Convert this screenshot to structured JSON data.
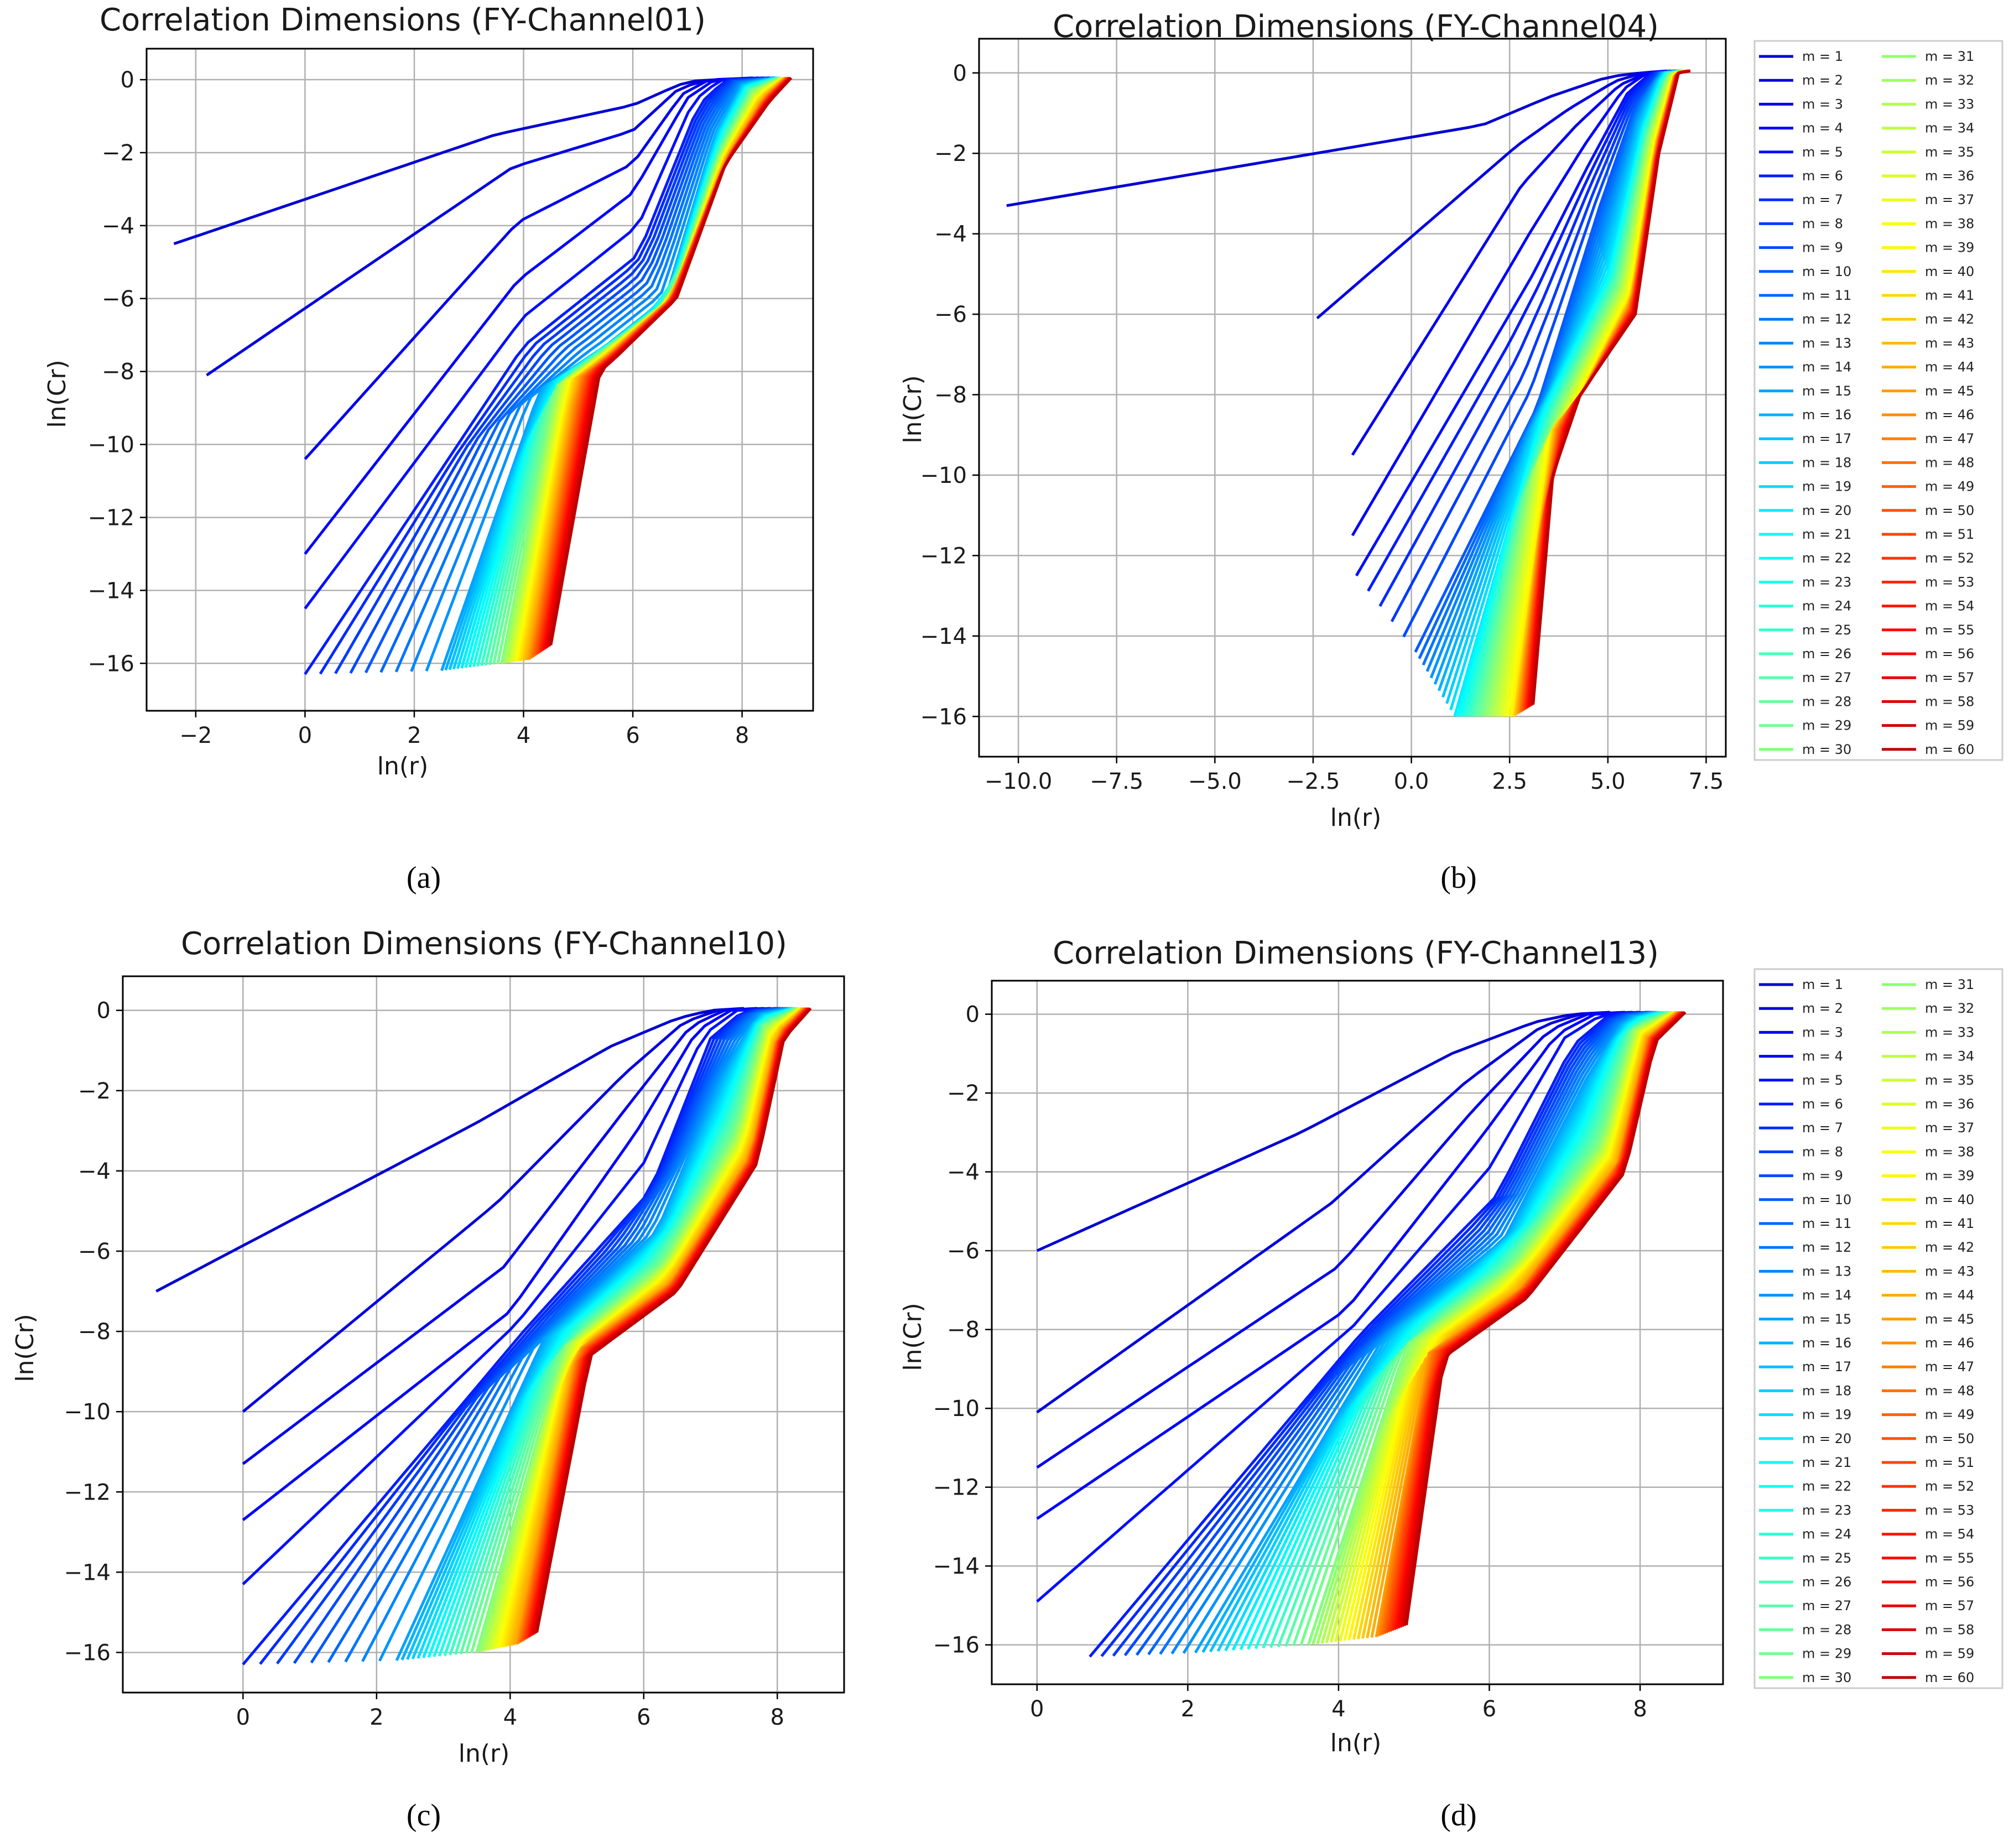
{
  "figure": {
    "background": "#ffffff"
  },
  "legend": {
    "labels": [
      "m = 1",
      "m = 2",
      "m = 3",
      "m = 4",
      "m = 5",
      "m = 6",
      "m = 7",
      "m = 8",
      "m = 9",
      "m = 10",
      "m = 11",
      "m = 12",
      "m = 13",
      "m = 14",
      "m = 15",
      "m = 16",
      "m = 17",
      "m = 18",
      "m = 19",
      "m = 20",
      "m = 21",
      "m = 22",
      "m = 23",
      "m = 24",
      "m = 25",
      "m = 26",
      "m = 27",
      "m = 28",
      "m = 29",
      "m = 30",
      "m = 31",
      "m = 32",
      "m = 33",
      "m = 34",
      "m = 35",
      "m = 36",
      "m = 37",
      "m = 38",
      "m = 39",
      "m = 40",
      "m = 41",
      "m = 42",
      "m = 43",
      "m = 44",
      "m = 45",
      "m = 46",
      "m = 47",
      "m = 48",
      "m = 49",
      "m = 50",
      "m = 51",
      "m = 52",
      "m = 53",
      "m = 54",
      "m = 55",
      "m = 56",
      "m = 57",
      "m = 58",
      "m = 59",
      "m = 60"
    ],
    "colormap": "jet",
    "columns": 2,
    "placement": "right of panels (b) and (d)"
  },
  "chart_data": [
    {
      "panel": "(a)",
      "type": "line",
      "title": "Correlation Dimensions (FY-Channel01)",
      "xlabel": "ln(r)",
      "ylabel": "ln(Cr)",
      "grid": true,
      "xlim": [
        -2.9,
        9.3
      ],
      "ylim": [
        -17.3,
        0.85
      ],
      "xticks": [
        -2,
        0,
        2,
        4,
        6,
        8
      ],
      "yticks": [
        0,
        -2,
        -4,
        -6,
        -8,
        -10,
        -12,
        -14,
        -16
      ],
      "series_count": 60,
      "series_names": "m = 1 … m = 60",
      "anchor_series": [
        {
          "name": "m = 1",
          "x": [
            -2.4,
            3.5,
            6.0,
            6.6,
            7.0,
            7.5,
            8.2
          ],
          "y": [
            -4.5,
            -1.5,
            -0.7,
            -0.3,
            -0.05,
            0.0,
            0.05
          ]
        },
        {
          "name": "m = 2",
          "x": [
            -1.8,
            3.8,
            6.0,
            6.8,
            7.2,
            7.8,
            8.3
          ],
          "y": [
            -8.1,
            -2.4,
            -1.4,
            -0.3,
            -0.05,
            0.0,
            0.05
          ]
        },
        {
          "name": "m = 3",
          "x": [
            0.0,
            3.9,
            6.0,
            6.9,
            7.4,
            8.4
          ],
          "y": [
            -10.4,
            -3.9,
            -2.3,
            -0.4,
            0.0,
            0.05
          ]
        },
        {
          "name": "m = 4",
          "x": [
            0.0,
            3.9,
            6.0,
            7.0,
            7.5,
            8.5
          ],
          "y": [
            -13.0,
            -5.5,
            -3.1,
            -0.5,
            0.0,
            0.05
          ]
        },
        {
          "name": "m = 5",
          "x": [
            0.0,
            4.0,
            6.1,
            7.1,
            7.6,
            8.5
          ],
          "y": [
            -14.5,
            -6.5,
            -4.0,
            -0.6,
            0.0,
            0.05
          ]
        },
        {
          "name": "m = 6",
          "x": [
            0.0,
            4.0,
            6.1,
            7.2,
            7.7,
            8.6
          ],
          "y": [
            -16.3,
            -7.3,
            -4.8,
            -0.7,
            0.0,
            0.05
          ]
        },
        {
          "name": "m = 15",
          "x": [
            2.5,
            4.3,
            5.5,
            6.6,
            7.5,
            8.0,
            8.6
          ],
          "y": [
            -16.2,
            -8.5,
            -7.3,
            -6.0,
            -1.5,
            -0.1,
            0.05
          ]
        },
        {
          "name": "m = 30",
          "x": [
            3.6,
            4.6,
            5.5,
            6.7,
            7.6,
            8.2,
            8.7
          ],
          "y": [
            -16.0,
            -8.4,
            -7.4,
            -6.0,
            -2.0,
            -0.3,
            0.05
          ]
        },
        {
          "name": "m = 45",
          "x": [
            4.1,
            5.0,
            5.6,
            6.7,
            7.7,
            8.4,
            8.8
          ],
          "y": [
            -15.9,
            -8.2,
            -7.5,
            -6.0,
            -2.2,
            -0.5,
            0.05
          ]
        },
        {
          "name": "m = 60",
          "x": [
            4.5,
            5.4,
            5.7,
            6.8,
            7.7,
            8.5,
            8.9
          ],
          "y": [
            -15.5,
            -8.0,
            -7.6,
            -6.0,
            -2.3,
            -0.6,
            0.05
          ]
        }
      ]
    },
    {
      "panel": "(b)",
      "type": "line",
      "title": "Correlation Dimensions (FY-Channel04)",
      "xlabel": "ln(r)",
      "ylabel": "ln(Cr)",
      "grid": true,
      "xlim": [
        -11.0,
        8.0
      ],
      "ylim": [
        -17.0,
        0.85
      ],
      "xticks": [
        -10.0,
        -7.5,
        -5.0,
        -2.5,
        0.0,
        2.5,
        5.0,
        7.5
      ],
      "yticks": [
        0,
        -2,
        -4,
        -6,
        -8,
        -10,
        -12,
        -14,
        -16
      ],
      "series_count": 60,
      "series_names": "m = 1 … m = 60",
      "anchor_series": [
        {
          "name": "m = 1",
          "x": [
            -10.3,
            1.8,
            3.5,
            5.0,
            5.8,
            6.5
          ],
          "y": [
            -3.3,
            -1.3,
            -0.6,
            -0.1,
            0.0,
            0.05
          ]
        },
        {
          "name": "m = 2",
          "x": [
            -2.4,
            2.7,
            4.0,
            5.2,
            5.9,
            6.6
          ],
          "y": [
            -6.1,
            -1.8,
            -0.9,
            -0.2,
            0.0,
            0.05
          ]
        },
        {
          "name": "m = 3",
          "x": [
            -1.5,
            2.8,
            4.2,
            5.3,
            6.0,
            6.6
          ],
          "y": [
            -9.5,
            -2.8,
            -1.3,
            -0.3,
            0.0,
            0.05
          ]
        },
        {
          "name": "m = 4",
          "x": [
            -1.5,
            3.0,
            4.4,
            5.4,
            6.0,
            6.7
          ],
          "y": [
            -11.5,
            -4.0,
            -1.8,
            -0.4,
            0.0,
            0.05
          ]
        },
        {
          "name": "m = 5",
          "x": [
            -1.4,
            3.1,
            4.5,
            5.5,
            6.1,
            6.7
          ],
          "y": [
            -12.5,
            -5.0,
            -2.3,
            -0.5,
            0.0,
            0.05
          ]
        },
        {
          "name": "m = 10",
          "x": [
            0.1,
            3.2,
            4.8,
            5.7,
            6.3,
            6.8
          ],
          "y": [
            -14.4,
            -8.3,
            -3.3,
            -0.8,
            0.0,
            0.05
          ]
        },
        {
          "name": "m = 20",
          "x": [
            1.1,
            3.3,
            5.0,
            5.9,
            6.4,
            6.9
          ],
          "y": [
            -16.0,
            -8.5,
            -5.0,
            -1.3,
            0.0,
            0.05
          ]
        },
        {
          "name": "m = 40",
          "x": [
            2.6,
            3.6,
            4.2,
            5.6,
            6.2,
            6.7,
            7.0
          ],
          "y": [
            -16.0,
            -8.8,
            -8.2,
            -5.5,
            -1.8,
            0.0,
            0.05
          ]
        },
        {
          "name": "m = 60",
          "x": [
            3.1,
            3.6,
            4.3,
            5.7,
            6.3,
            6.8,
            7.1
          ],
          "y": [
            -15.7,
            -10.0,
            -8.0,
            -6.0,
            -2.0,
            0.0,
            0.05
          ]
        }
      ]
    },
    {
      "panel": "(c)",
      "type": "line",
      "title": "Correlation Dimensions (FY-Channel10)",
      "xlabel": "ln(r)",
      "ylabel": "ln(Cr)",
      "grid": true,
      "xlim": [
        -1.8,
        9.0
      ],
      "ylim": [
        -17.0,
        0.85
      ],
      "xticks": [
        0,
        2,
        4,
        6,
        8
      ],
      "yticks": [
        0,
        -2,
        -4,
        -6,
        -8,
        -10,
        -12,
        -14,
        -16
      ],
      "series_count": 60,
      "series_names": "m = 1 … m = 60",
      "anchor_series": [
        {
          "name": "m = 1",
          "x": [
            -1.3,
            3.5,
            5.5,
            6.5,
            7.0,
            7.5
          ],
          "y": [
            -7.0,
            -2.8,
            -0.9,
            -0.2,
            0.0,
            0.05
          ]
        },
        {
          "name": "m = 2",
          "x": [
            0.0,
            3.8,
            5.7,
            6.6,
            7.1,
            7.7
          ],
          "y": [
            -10.0,
            -4.8,
            -1.6,
            -0.3,
            0.0,
            0.05
          ]
        },
        {
          "name": "m = 3",
          "x": [
            0.0,
            3.9,
            5.8,
            6.7,
            7.2,
            7.8
          ],
          "y": [
            -11.3,
            -6.4,
            -2.3,
            -0.4,
            0.0,
            0.05
          ]
        },
        {
          "name": "m = 4",
          "x": [
            0.0,
            4.0,
            5.9,
            6.8,
            7.3,
            7.9
          ],
          "y": [
            -12.7,
            -7.5,
            -3.0,
            -0.5,
            0.0,
            0.05
          ]
        },
        {
          "name": "m = 5",
          "x": [
            0.0,
            4.1,
            6.0,
            6.9,
            7.4,
            8.0
          ],
          "y": [
            -14.3,
            -7.8,
            -3.8,
            -0.6,
            0.0,
            0.05
          ]
        },
        {
          "name": "m = 6",
          "x": [
            0.0,
            4.2,
            6.1,
            7.0,
            7.5,
            8.0
          ],
          "y": [
            -16.3,
            -8.0,
            -4.5,
            -0.7,
            0.0,
            0.05
          ]
        },
        {
          "name": "m = 15",
          "x": [
            2.3,
            4.5,
            6.2,
            7.2,
            7.7,
            8.2
          ],
          "y": [
            -16.2,
            -8.2,
            -5.5,
            -1.5,
            -0.1,
            0.05
          ]
        },
        {
          "name": "m = 30",
          "x": [
            3.5,
            4.8,
            6.3,
            7.4,
            7.8,
            8.3
          ],
          "y": [
            -16.0,
            -8.4,
            -6.3,
            -3.0,
            -0.4,
            0.05
          ]
        },
        {
          "name": "m = 45",
          "x": [
            4.1,
            5.0,
            6.4,
            7.6,
            8.0,
            8.4
          ],
          "y": [
            -15.8,
            -8.5,
            -6.8,
            -3.6,
            -0.6,
            0.05
          ]
        },
        {
          "name": "m = 60",
          "x": [
            4.4,
            5.2,
            6.5,
            7.7,
            8.1,
            8.5
          ],
          "y": [
            -15.5,
            -8.6,
            -7.0,
            -3.8,
            -0.7,
            0.05
          ]
        }
      ]
    },
    {
      "panel": "(d)",
      "type": "line",
      "title": "Correlation Dimensions (FY-Channel13)",
      "xlabel": "ln(r)",
      "ylabel": "ln(Cr)",
      "grid": true,
      "xlim": [
        -0.6,
        9.1
      ],
      "ylim": [
        -17.0,
        0.85
      ],
      "xticks": [
        0,
        2,
        4,
        6,
        8
      ],
      "yticks": [
        0,
        -2,
        -4,
        -6,
        -8,
        -10,
        -12,
        -14,
        -16
      ],
      "series_count": 60,
      "series_names": "m = 1 … m = 60",
      "anchor_series": [
        {
          "name": "m = 1",
          "x": [
            0.0,
            3.5,
            5.5,
            6.6,
            7.1,
            7.6
          ],
          "y": [
            -6.0,
            -3.0,
            -1.0,
            -0.2,
            0.0,
            0.05
          ]
        },
        {
          "name": "m = 2",
          "x": [
            0.0,
            3.9,
            5.7,
            6.7,
            7.2,
            7.8
          ],
          "y": [
            -10.1,
            -4.8,
            -1.7,
            -0.3,
            0.0,
            0.05
          ]
        },
        {
          "name": "m = 3",
          "x": [
            0.0,
            4.0,
            5.8,
            6.8,
            7.3,
            7.9
          ],
          "y": [
            -11.5,
            -6.4,
            -2.4,
            -0.4,
            0.0,
            0.05
          ]
        },
        {
          "name": "m = 4",
          "x": [
            0.0,
            4.1,
            5.9,
            6.9,
            7.4,
            8.0
          ],
          "y": [
            -12.8,
            -7.5,
            -3.1,
            -0.5,
            0.0,
            0.05
          ]
        },
        {
          "name": "m = 5",
          "x": [
            0.0,
            4.2,
            6.0,
            7.0,
            7.5,
            8.0
          ],
          "y": [
            -14.9,
            -7.9,
            -3.9,
            -0.6,
            0.0,
            0.05
          ]
        },
        {
          "name": "m = 6",
          "x": [
            0.7,
            4.3,
            6.1,
            7.1,
            7.6,
            8.1
          ],
          "y": [
            -16.3,
            -8.1,
            -4.6,
            -0.8,
            0.0,
            0.05
          ]
        },
        {
          "name": "m = 15",
          "x": [
            2.1,
            4.6,
            6.2,
            7.3,
            7.8,
            8.2
          ],
          "y": [
            -16.2,
            -8.2,
            -5.7,
            -1.6,
            -0.1,
            0.05
          ]
        },
        {
          "name": "m = 30",
          "x": [
            3.6,
            4.9,
            6.3,
            7.5,
            7.9,
            8.4
          ],
          "y": [
            -16.0,
            -8.4,
            -6.4,
            -3.2,
            -0.4,
            0.05
          ]
        },
        {
          "name": "m = 45",
          "x": [
            4.5,
            5.2,
            6.4,
            7.7,
            8.1,
            8.5
          ],
          "y": [
            -15.8,
            -8.6,
            -7.0,
            -3.8,
            -0.6,
            0.05
          ]
        },
        {
          "name": "m = 60",
          "x": [
            4.9,
            5.4,
            6.5,
            7.8,
            8.2,
            8.6
          ],
          "y": [
            -15.5,
            -8.7,
            -7.2,
            -4.0,
            -0.7,
            0.05
          ]
        }
      ]
    }
  ]
}
